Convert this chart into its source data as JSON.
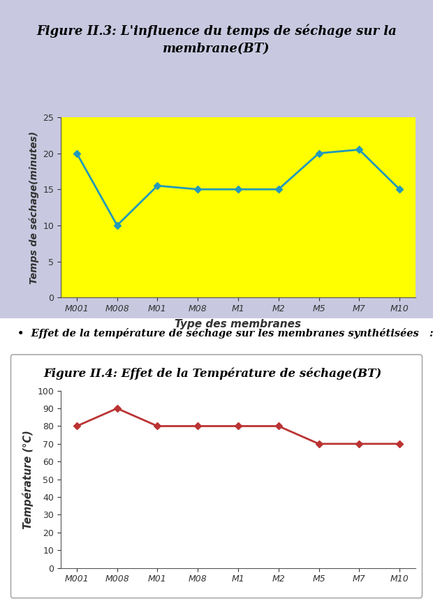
{
  "fig_width": 6.2,
  "fig_height": 8.61,
  "top_bg": "#c8c8e0",
  "bottom_bg": "#ffffff",
  "chart1": {
    "title_bold": "Figure II.3:",
    "title_rest": " L'influence du temps de séchage sur la\nmembrane(BT)",
    "categories": [
      "M001",
      "M008",
      "M01",
      "M08",
      "M1",
      "M2",
      "M5",
      "M7",
      "M10"
    ],
    "values": [
      20,
      10,
      15.5,
      15,
      15,
      15,
      20,
      20.5,
      15
    ],
    "xlabel": "Type des membranes",
    "ylabel": "Temps de séchage(minutes)",
    "ylim": [
      0,
      25
    ],
    "yticks": [
      0,
      5,
      10,
      15,
      20,
      25
    ],
    "line_color": "#2299bb",
    "marker_color": "#2299bb",
    "plot_bg": "#ffff00"
  },
  "bullet_text": "Effet de la température de séchage sur les membranes synthétisées   :",
  "chart2": {
    "title_bold": "Figure II.4",
    "title_rest": ": Effet de la Température de séchage(BT)",
    "categories": [
      "M001",
      "M008",
      "M01",
      "M08",
      "M1",
      "M2",
      "M5",
      "M7",
      "M10"
    ],
    "values": [
      80,
      90,
      80,
      80,
      80,
      80,
      70,
      70,
      70
    ],
    "ylabel": "Température (°C)",
    "ylim": [
      0,
      100
    ],
    "yticks": [
      0,
      10,
      20,
      30,
      40,
      50,
      60,
      70,
      80,
      90,
      100
    ],
    "line_color": "#bb3333",
    "marker_color": "#bb3333",
    "plot_bg": "#ffffff",
    "box_bg": "#ffffff",
    "box_edge": "#aaaaaa"
  }
}
